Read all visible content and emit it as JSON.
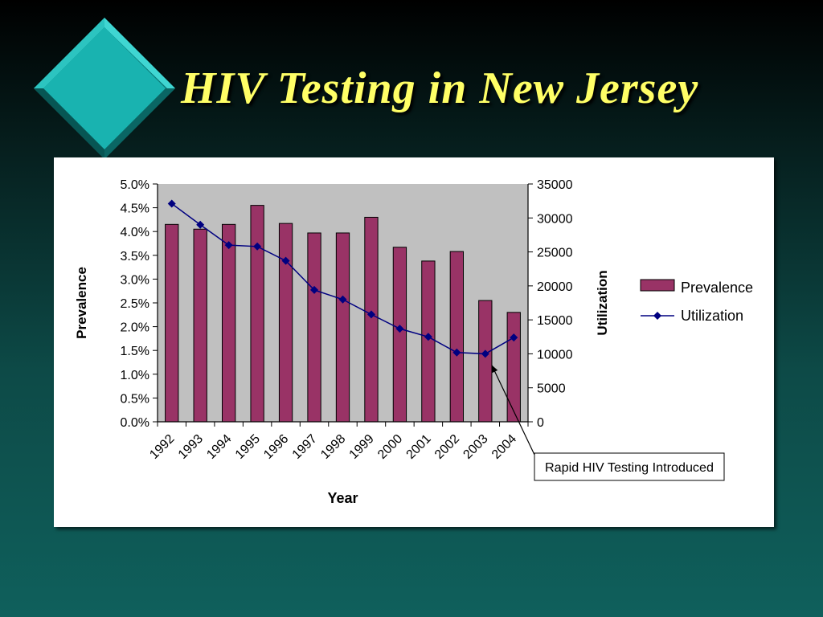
{
  "slide": {
    "title": "HIV Testing in New Jersey"
  },
  "colors": {
    "bar": "#993366",
    "line": "#000080",
    "plot_bg": "#c0c0c0",
    "title": "#ffff66",
    "diamond": "#19b3b0"
  },
  "chart_data": {
    "type": "bar",
    "categories": [
      "1992",
      "1993",
      "1994",
      "1995",
      "1996",
      "1997",
      "1998",
      "1999",
      "2000",
      "2001",
      "2002",
      "2003",
      "2004"
    ],
    "series": [
      {
        "name": "Prevalence",
        "type": "bar",
        "axis": "left",
        "values": [
          4.15,
          4.05,
          4.15,
          4.55,
          4.17,
          3.97,
          3.97,
          4.3,
          3.67,
          3.38,
          3.58,
          2.55,
          2.3
        ]
      },
      {
        "name": "Utilization",
        "type": "line",
        "axis": "right",
        "values": [
          32100,
          29000,
          26000,
          25800,
          23700,
          19400,
          18000,
          15800,
          13700,
          12500,
          10200,
          10000,
          12400
        ]
      }
    ],
    "xlabel": "Year",
    "ylabel": "Prevalence",
    "y2label": "Utilization",
    "ylim": [
      0,
      5
    ],
    "y2lim": [
      0,
      35000
    ],
    "y_ticks": [
      "0.0%",
      "0.5%",
      "1.0%",
      "1.5%",
      "2.0%",
      "2.5%",
      "3.0%",
      "3.5%",
      "4.0%",
      "4.5%",
      "5.0%"
    ],
    "y2_ticks": [
      "0",
      "5000",
      "10000",
      "15000",
      "20000",
      "25000",
      "30000",
      "35000"
    ],
    "legend": {
      "placement": "right",
      "items": [
        "Prevalence",
        "Utilization"
      ]
    },
    "annotation": {
      "text": "Rapid HIV Testing Introduced",
      "category": "2003"
    },
    "grid": false
  }
}
